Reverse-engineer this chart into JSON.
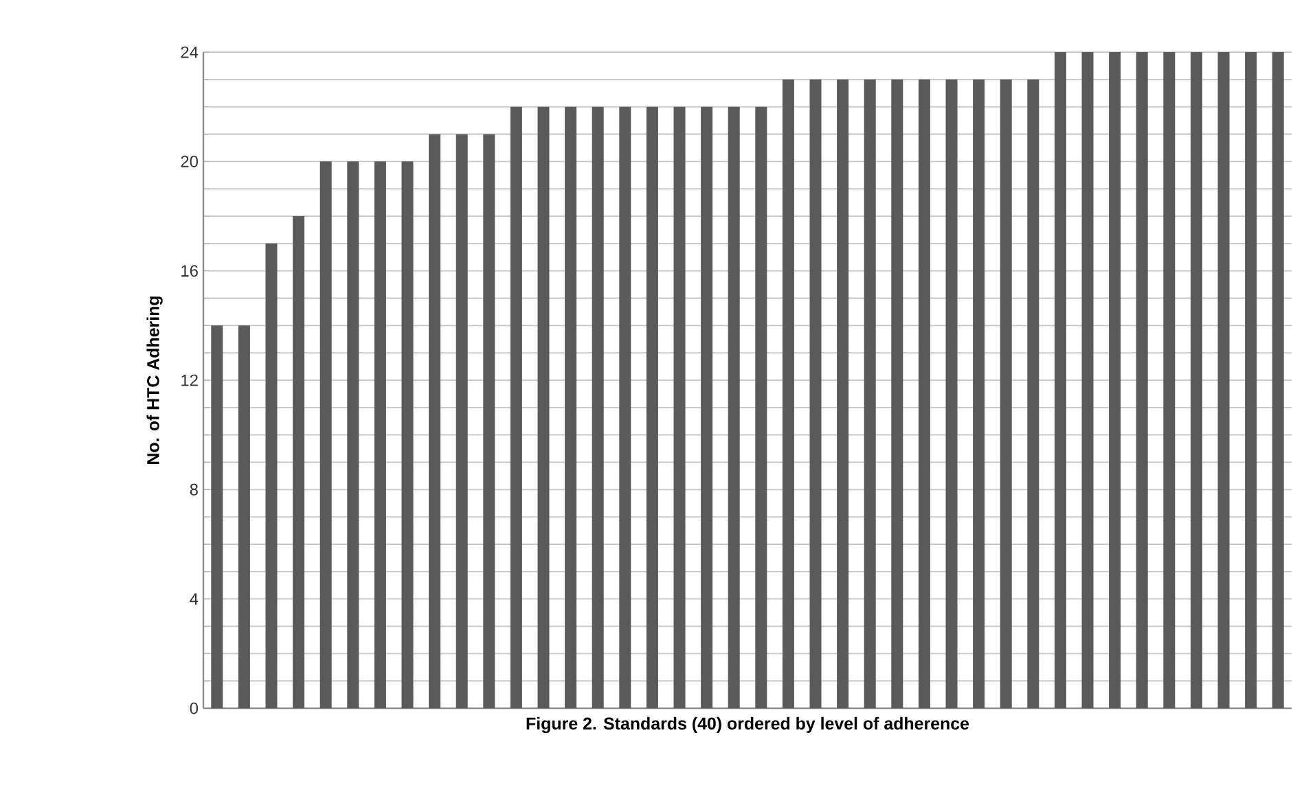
{
  "chart_data": {
    "type": "bar",
    "xlabel": "Figure 2.  Standards (40) ordered by level of adherence",
    "ylabel": "No. of HTC Adhering",
    "categories": [
      null,
      null,
      null,
      null,
      null,
      null,
      null,
      null,
      null,
      null,
      null,
      null,
      null,
      null,
      null,
      null,
      null,
      null,
      null,
      null,
      null,
      null,
      null,
      null,
      null,
      null,
      null,
      null,
      null,
      null,
      null,
      null,
      null,
      null,
      null,
      null,
      null,
      null,
      null,
      null
    ],
    "values": [
      14,
      14,
      17,
      18,
      20,
      20,
      20,
      20,
      21,
      21,
      21,
      22,
      22,
      22,
      22,
      22,
      22,
      22,
      22,
      22,
      22,
      23,
      23,
      23,
      23,
      23,
      23,
      23,
      23,
      23,
      23,
      24,
      24,
      24,
      24,
      24,
      24,
      24,
      24,
      24
    ],
    "color": "#5a5a5a",
    "ylim": [
      0,
      24
    ],
    "yticks": [
      0,
      {
        "value": 1,
        "label": null
      },
      {
        "value": 2,
        "label": null
      },
      {
        "value": 3,
        "label": null
      },
      4,
      {
        "value": 5,
        "label": null
      },
      {
        "value": 6,
        "label": null
      },
      {
        "value": 7,
        "label": null
      },
      8,
      {
        "value": 9,
        "label": null
      },
      {
        "value": 10,
        "label": null
      },
      {
        "value": 11,
        "label": null
      },
      12,
      {
        "value": 13,
        "label": null
      },
      {
        "value": 14,
        "label": null
      },
      {
        "value": 15,
        "label": null
      },
      16,
      {
        "value": 17,
        "label": null
      },
      {
        "value": 18,
        "label": null
      },
      {
        "value": 19,
        "label": null
      },
      20,
      {
        "value": 21,
        "label": null
      },
      {
        "value": 22,
        "label": null
      },
      {
        "value": 23,
        "label": null
      },
      24
    ],
    "grid": "y"
  }
}
